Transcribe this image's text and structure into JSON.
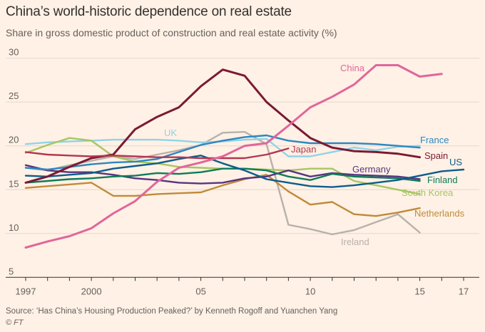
{
  "title": "China’s world-historic dependence on real estate",
  "subtitle": "Share in gross domestic product of construction and real estate activity (%)",
  "source": "Source: ‘Has China’s Housing Production Peaked?’ by Kenneth Rogoff and Yuanchen Yang",
  "copyright": "© FT",
  "chart_data": {
    "type": "line",
    "title": "China’s world-historic dependence on real estate",
    "subtitle": "Share in gross domestic product of construction and real estate activity (%)",
    "xlabel": "",
    "ylabel": "",
    "xlim": [
      1997,
      2017
    ],
    "ylim": [
      5,
      30
    ],
    "grid": true,
    "legend": "inline labels",
    "y_ticks": [
      {
        "value": 30,
        "label": "30"
      },
      {
        "value": 25,
        "label": "25"
      },
      {
        "value": 20,
        "label": "20"
      },
      {
        "value": 15,
        "label": "15"
      },
      {
        "value": 10,
        "label": "10"
      },
      {
        "value": 5,
        "label": "5"
      }
    ],
    "x_ticks": [
      {
        "value": 1997,
        "label": "1997"
      },
      {
        "value": 2000,
        "label": "2000"
      },
      {
        "value": 2005,
        "label": "05"
      },
      {
        "value": 2010,
        "label": "10"
      },
      {
        "value": 2015,
        "label": "15"
      },
      {
        "value": 2017,
        "label": "17"
      }
    ],
    "series": [
      {
        "name": "Ireland",
        "color": "#b8b1ab",
        "x": [
          1997,
          1998,
          1999,
          2000,
          2001,
          2002,
          2003,
          2004,
          2005,
          2006,
          2007,
          2008,
          2009,
          2010,
          2011,
          2012,
          2013,
          2014,
          2015
        ],
        "y": [
          17.5,
          17.2,
          17.8,
          18.3,
          18.8,
          18.5,
          19.0,
          19.5,
          20.1,
          21.5,
          21.6,
          20.2,
          11.0,
          10.5,
          9.9,
          10.4,
          11.3,
          12.2,
          10.1
        ]
      },
      {
        "name": "UK",
        "color": "#8fd3e8",
        "x": [
          1997,
          1998,
          1999,
          2000,
          2001,
          2002,
          2003,
          2004,
          2005,
          2006,
          2007,
          2008,
          2009,
          2010,
          2011,
          2012,
          2013,
          2014,
          2015
        ],
        "y": [
          20.2,
          20.4,
          20.5,
          20.6,
          20.7,
          20.7,
          20.7,
          20.6,
          20.4,
          20.5,
          20.7,
          20.8,
          18.8,
          18.8,
          19.3,
          19.8,
          19.5,
          19.9,
          20.0
        ]
      },
      {
        "name": "South Korea",
        "color": "#a7c663",
        "x": [
          1997,
          1998,
          1999,
          2000,
          2001,
          2002,
          2003,
          2004,
          2005,
          2006,
          2007,
          2008,
          2009,
          2010,
          2011,
          2012,
          2013,
          2014,
          2015
        ],
        "y": [
          19.2,
          20.1,
          20.9,
          20.6,
          18.8,
          18.2,
          18.0,
          17.6,
          17.5,
          17.4,
          17.4,
          17.3,
          17.2,
          17.4,
          17.4,
          16.0,
          15.5,
          15.0,
          14.5
        ]
      },
      {
        "name": "Netherlands",
        "color": "#c08a3b",
        "x": [
          1997,
          1998,
          1999,
          2000,
          2001,
          2002,
          2003,
          2004,
          2005,
          2006,
          2007,
          2008,
          2009,
          2010,
          2011,
          2012,
          2013,
          2014,
          2015
        ],
        "y": [
          15.2,
          15.4,
          15.6,
          15.8,
          14.3,
          14.3,
          14.5,
          14.6,
          14.7,
          15.5,
          16.2,
          16.7,
          14.8,
          13.3,
          13.6,
          12.2,
          12.0,
          12.4,
          12.9
        ]
      },
      {
        "name": "Germany",
        "color": "#593380",
        "x": [
          1997,
          1998,
          1999,
          2000,
          2001,
          2002,
          2003,
          2004,
          2005,
          2006,
          2007,
          2008,
          2009,
          2010,
          2011,
          2012,
          2013,
          2014,
          2015
        ],
        "y": [
          17.8,
          17.2,
          17.0,
          17.0,
          16.7,
          16.3,
          16.1,
          15.8,
          15.7,
          15.8,
          16.3,
          16.5,
          17.2,
          16.5,
          16.9,
          16.7,
          16.6,
          16.5,
          16.2
        ]
      },
      {
        "name": "Finland",
        "color": "#0f7b5a",
        "x": [
          1997,
          1998,
          1999,
          2000,
          2001,
          2002,
          2003,
          2004,
          2005,
          2006,
          2007,
          2008,
          2009,
          2010,
          2011,
          2012,
          2013,
          2014,
          2015
        ],
        "y": [
          15.8,
          16.0,
          16.2,
          16.3,
          16.5,
          16.6,
          16.9,
          16.8,
          17.0,
          17.4,
          17.4,
          17.2,
          16.5,
          16.1,
          16.8,
          16.5,
          16.4,
          16.3,
          16.0
        ]
      },
      {
        "name": "US",
        "color": "#0d5c8c",
        "x": [
          1997,
          1998,
          1999,
          2000,
          2001,
          2002,
          2003,
          2004,
          2005,
          2006,
          2007,
          2008,
          2009,
          2010,
          2011,
          2012,
          2013,
          2014,
          2015,
          2016,
          2017
        ],
        "y": [
          16.6,
          16.5,
          16.7,
          16.9,
          17.4,
          17.7,
          18.0,
          18.5,
          18.9,
          18.0,
          17.2,
          16.2,
          15.8,
          15.4,
          15.3,
          15.5,
          15.8,
          16.1,
          16.6,
          17.1,
          17.3
        ]
      },
      {
        "name": "France",
        "color": "#2e86c1",
        "x": [
          1997,
          1998,
          1999,
          2000,
          2001,
          2002,
          2003,
          2004,
          2005,
          2006,
          2007,
          2008,
          2009,
          2010,
          2011,
          2012,
          2013,
          2014,
          2015
        ],
        "y": [
          17.5,
          17.3,
          17.6,
          17.9,
          18.1,
          18.2,
          18.5,
          19.3,
          20.1,
          20.6,
          21.0,
          21.2,
          20.6,
          20.3,
          20.3,
          20.3,
          20.2,
          20.0,
          19.8
        ]
      },
      {
        "name": "Spain",
        "color": "#7a1a33",
        "x": [
          1997,
          1998,
          1999,
          2000,
          2001,
          2002,
          2003,
          2004,
          2005,
          2006,
          2007,
          2008,
          2009,
          2010,
          2011,
          2012,
          2013,
          2014,
          2015
        ],
        "y": [
          15.8,
          16.5,
          17.6,
          18.6,
          19.0,
          21.9,
          23.3,
          24.4,
          26.8,
          28.7,
          28.0,
          25.0,
          22.9,
          20.9,
          19.8,
          19.4,
          19.3,
          19.1,
          18.7
        ]
      },
      {
        "name": "Japan",
        "color": "#b3364f",
        "x": [
          1997,
          1998,
          1999,
          2000,
          2001,
          2002,
          2003,
          2004,
          2005,
          2006,
          2007,
          2008,
          2009
        ],
        "y": [
          19.3,
          19.0,
          18.9,
          18.8,
          18.9,
          18.8,
          18.7,
          18.7,
          18.6,
          18.6,
          18.6,
          19.0,
          19.7
        ]
      },
      {
        "name": "China",
        "color": "#e0669b",
        "x": [
          1997,
          1998,
          1999,
          2000,
          2001,
          2002,
          2003,
          2004,
          2005,
          2006,
          2007,
          2008,
          2009,
          2010,
          2011,
          2012,
          2013,
          2014,
          2015,
          2016
        ],
        "y": [
          8.4,
          9.1,
          9.7,
          10.6,
          12.3,
          13.7,
          15.9,
          17.5,
          18.1,
          18.8,
          20.0,
          20.3,
          22.3,
          24.4,
          25.6,
          27.0,
          29.2,
          29.2,
          27.9,
          28.2
        ]
      }
    ],
    "labels": [
      {
        "text": "China",
        "series": "China"
      },
      {
        "text": "UK",
        "series": "UK"
      },
      {
        "text": "France",
        "series": "France"
      },
      {
        "text": "Japan",
        "series": "Japan"
      },
      {
        "text": "Spain",
        "series": "Spain"
      },
      {
        "text": "US",
        "series": "US"
      },
      {
        "text": "Germany",
        "series": "Germany"
      },
      {
        "text": "Finland",
        "series": "Finland"
      },
      {
        "text": "South Korea",
        "series": "South Korea"
      },
      {
        "text": "Netherlands",
        "series": "Netherlands"
      },
      {
        "text": "Ireland",
        "series": "Ireland"
      }
    ]
  }
}
